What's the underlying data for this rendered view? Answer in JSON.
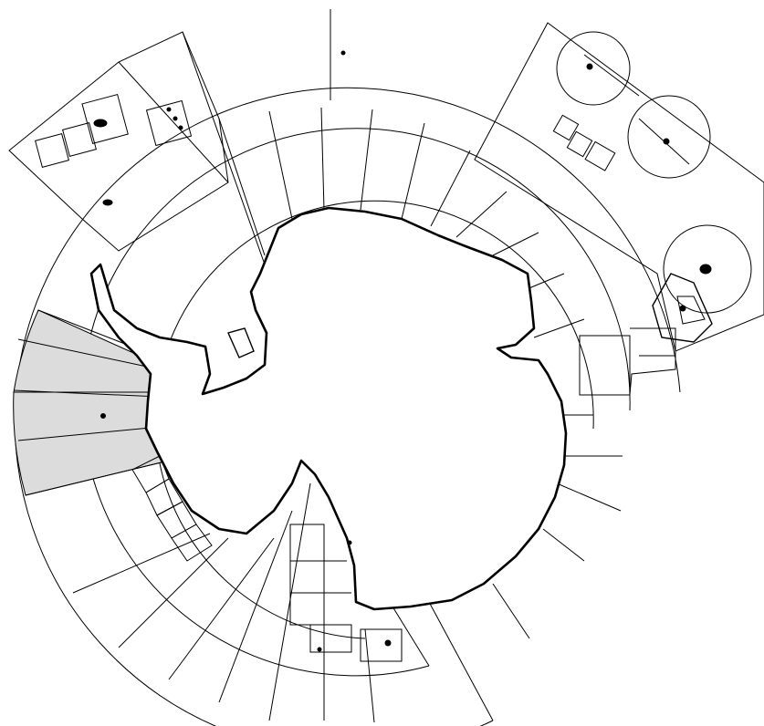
{
  "map": {
    "colors": {
      "background": "#ffffff",
      "line": "#000000",
      "highlight_sector_fill": "#dcdcdc",
      "land_outline": "#000000"
    }
  }
}
